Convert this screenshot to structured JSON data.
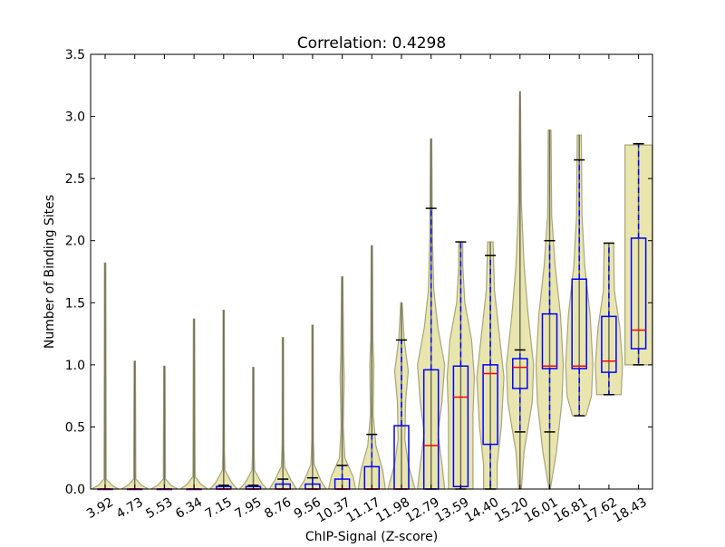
{
  "chart_data": {
    "type": "violin+box",
    "title": "Correlation: 0.4298",
    "xlabel": "ChIP-Signal (Z-score)",
    "ylabel": "Number of Binding Sites",
    "ylim": [
      0,
      3.5
    ],
    "yticks": [
      "0.0",
      "0.5",
      "1.0",
      "1.5",
      "2.0",
      "2.5",
      "3.0",
      "3.5"
    ],
    "grid": false,
    "colors": {
      "violin": "#e8e6ae",
      "violin_edge": "#a8a57a",
      "box": "#0000ff",
      "median": "#ff0000",
      "cap": "#000000",
      "center": "#6e6e5e"
    },
    "categories": [
      "3.92",
      "4.73",
      "5.53",
      "6.34",
      "7.15",
      "7.95",
      "8.76",
      "9.56",
      "10.37",
      "11.17",
      "11.98",
      "12.79",
      "13.59",
      "14.40",
      "15.20",
      "16.01",
      "16.81",
      "17.62",
      "18.43"
    ],
    "boxes": [
      {
        "wlo": 0,
        "q1": 0,
        "med": 0,
        "q3": 0,
        "whi": 0
      },
      {
        "wlo": 0,
        "q1": 0,
        "med": 0,
        "q3": 0,
        "whi": 0
      },
      {
        "wlo": 0,
        "q1": 0,
        "med": 0,
        "q3": 0,
        "whi": 0
      },
      {
        "wlo": 0,
        "q1": 0,
        "med": 0,
        "q3": 0,
        "whi": 0
      },
      {
        "wlo": 0,
        "q1": 0,
        "med": 0,
        "q3": 0.02,
        "whi": 0.03
      },
      {
        "wlo": 0,
        "q1": 0,
        "med": 0,
        "q3": 0.02,
        "whi": 0.03
      },
      {
        "wlo": 0,
        "q1": 0,
        "med": 0,
        "q3": 0.04,
        "whi": 0.08
      },
      {
        "wlo": 0,
        "q1": 0,
        "med": 0,
        "q3": 0.04,
        "whi": 0.09
      },
      {
        "wlo": 0,
        "q1": 0,
        "med": 0,
        "q3": 0.08,
        "whi": 0.19
      },
      {
        "wlo": 0,
        "q1": 0,
        "med": 0,
        "q3": 0.18,
        "whi": 0.44
      },
      {
        "wlo": 0,
        "q1": 0,
        "med": 0,
        "q3": 0.51,
        "whi": 1.2
      },
      {
        "wlo": 0,
        "q1": 0,
        "med": 0.35,
        "q3": 0.96,
        "whi": 2.26
      },
      {
        "wlo": 0,
        "q1": 0.02,
        "med": 0.74,
        "q3": 0.99,
        "whi": 1.99
      },
      {
        "wlo": 0,
        "q1": 0.36,
        "med": 0.93,
        "q3": 1.0,
        "whi": 1.88
      },
      {
        "wlo": 0.46,
        "q1": 0.81,
        "med": 0.98,
        "q3": 1.05,
        "whi": 1.12
      },
      {
        "wlo": 0.46,
        "q1": 0.97,
        "med": 0.99,
        "q3": 1.41,
        "whi": 2.0
      },
      {
        "wlo": 0.59,
        "q1": 0.97,
        "med": 0.99,
        "q3": 1.69,
        "whi": 2.65
      },
      {
        "wlo": 0.76,
        "q1": 0.94,
        "med": 1.03,
        "q3": 1.39,
        "whi": 1.98
      },
      {
        "wlo": 1.0,
        "q1": 1.13,
        "med": 1.28,
        "q3": 2.02,
        "whi": 2.78
      }
    ],
    "violins": [
      {
        "min": 0,
        "max": 1.82,
        "density": [
          [
            0,
            1
          ],
          [
            0.03,
            0.5
          ],
          [
            0.08,
            0.08
          ],
          [
            1.82,
            0.05
          ]
        ]
      },
      {
        "min": 0,
        "max": 1.03,
        "density": [
          [
            0,
            1
          ],
          [
            0.03,
            0.5
          ],
          [
            0.08,
            0.08
          ],
          [
            1.03,
            0.05
          ]
        ]
      },
      {
        "min": 0,
        "max": 0.99,
        "density": [
          [
            0,
            1
          ],
          [
            0.03,
            0.5
          ],
          [
            0.08,
            0.08
          ],
          [
            0.99,
            0.05
          ]
        ]
      },
      {
        "min": 0,
        "max": 1.37,
        "density": [
          [
            0,
            1
          ],
          [
            0.04,
            0.5
          ],
          [
            0.1,
            0.08
          ],
          [
            1.37,
            0.05
          ]
        ]
      },
      {
        "min": 0,
        "max": 1.44,
        "density": [
          [
            0,
            1
          ],
          [
            0.05,
            0.6
          ],
          [
            0.15,
            0.1
          ],
          [
            0.3,
            0.06
          ],
          [
            1.44,
            0.05
          ]
        ]
      },
      {
        "min": 0,
        "max": 0.98,
        "density": [
          [
            0,
            1
          ],
          [
            0.05,
            0.6
          ],
          [
            0.15,
            0.1
          ],
          [
            0.3,
            0.06
          ],
          [
            0.98,
            0.05
          ]
        ]
      },
      {
        "min": 0,
        "max": 1.22,
        "density": [
          [
            0,
            1
          ],
          [
            0.07,
            0.6
          ],
          [
            0.18,
            0.12
          ],
          [
            0.35,
            0.06
          ],
          [
            1.22,
            0.05
          ]
        ]
      },
      {
        "min": 0,
        "max": 1.32,
        "density": [
          [
            0,
            1
          ],
          [
            0.07,
            0.6
          ],
          [
            0.2,
            0.12
          ],
          [
            0.4,
            0.06
          ],
          [
            1.32,
            0.05
          ]
        ]
      },
      {
        "min": 0,
        "max": 1.71,
        "density": [
          [
            0,
            1
          ],
          [
            0.1,
            0.8
          ],
          [
            0.25,
            0.2
          ],
          [
            0.5,
            0.08
          ],
          [
            0.9,
            0.15
          ],
          [
            1.1,
            0.1
          ],
          [
            1.71,
            0.05
          ]
        ]
      },
      {
        "min": 0,
        "max": 1.96,
        "density": [
          [
            0,
            1
          ],
          [
            0.15,
            0.8
          ],
          [
            0.35,
            0.3
          ],
          [
            0.6,
            0.1
          ],
          [
            1.0,
            0.15
          ],
          [
            1.2,
            0.08
          ],
          [
            1.96,
            0.05
          ]
        ]
      },
      {
        "min": 0,
        "max": 1.5,
        "density": [
          [
            0,
            1
          ],
          [
            0.2,
            0.5
          ],
          [
            0.4,
            0.25
          ],
          [
            0.7,
            0.3
          ],
          [
            0.95,
            0.5
          ],
          [
            1.2,
            0.2
          ],
          [
            1.4,
            0.1
          ],
          [
            1.5,
            0.05
          ]
        ]
      },
      {
        "min": 0,
        "max": 2.82,
        "density": [
          [
            0,
            1
          ],
          [
            0.2,
            0.8
          ],
          [
            0.45,
            0.5
          ],
          [
            0.7,
            0.8
          ],
          [
            1.0,
            1
          ],
          [
            1.3,
            0.5
          ],
          [
            1.6,
            0.2
          ],
          [
            2.0,
            0.1
          ],
          [
            2.82,
            0.05
          ]
        ]
      },
      {
        "min": 0,
        "max": 1.99,
        "density": [
          [
            0,
            0.9
          ],
          [
            0.3,
            0.9
          ],
          [
            0.6,
            0.9
          ],
          [
            0.9,
            1
          ],
          [
            1.2,
            0.8
          ],
          [
            1.5,
            0.3
          ],
          [
            1.8,
            0.15
          ],
          [
            1.99,
            0.15
          ]
        ]
      },
      {
        "min": 0,
        "max": 1.99,
        "density": [
          [
            0,
            0.5
          ],
          [
            0.2,
            0.5
          ],
          [
            0.5,
            0.8
          ],
          [
            0.9,
            1
          ],
          [
            1.3,
            0.6
          ],
          [
            1.6,
            0.3
          ],
          [
            1.99,
            0.2
          ]
        ]
      },
      {
        "min": 0,
        "max": 3.2,
        "density": [
          [
            0,
            0.1
          ],
          [
            0.3,
            0.3
          ],
          [
            0.7,
            0.9
          ],
          [
            1.0,
            1
          ],
          [
            1.4,
            0.6
          ],
          [
            1.8,
            0.3
          ],
          [
            2.3,
            0.1
          ],
          [
            3.2,
            0.03
          ]
        ]
      },
      {
        "min": 0,
        "max": 2.89,
        "density": [
          [
            0,
            0.05
          ],
          [
            0.3,
            0.5
          ],
          [
            0.7,
            0.9
          ],
          [
            1.0,
            1
          ],
          [
            1.4,
            0.8
          ],
          [
            1.8,
            0.4
          ],
          [
            2.2,
            0.15
          ],
          [
            2.89,
            0.1
          ]
        ]
      },
      {
        "min": 0.59,
        "max": 2.85,
        "density": [
          [
            0.59,
            0.5
          ],
          [
            0.75,
            0.9
          ],
          [
            1.0,
            1
          ],
          [
            1.4,
            0.8
          ],
          [
            1.8,
            0.4
          ],
          [
            2.2,
            0.2
          ],
          [
            2.85,
            0.15
          ]
        ]
      },
      {
        "min": 0.76,
        "max": 1.98,
        "density": [
          [
            0.76,
            0.9
          ],
          [
            1.0,
            1
          ],
          [
            1.3,
            0.8
          ],
          [
            1.6,
            0.4
          ],
          [
            1.98,
            0.35
          ]
        ]
      },
      {
        "min": 1.0,
        "max": 2.77,
        "density": [
          [
            1.0,
            1
          ],
          [
            2.77,
            1
          ]
        ]
      }
    ]
  }
}
